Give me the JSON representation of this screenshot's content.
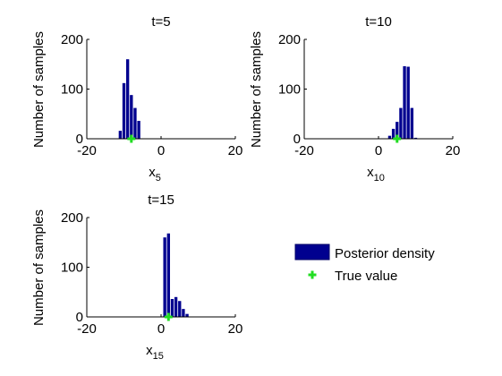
{
  "colors": {
    "bar_fill": "#00008f",
    "bar_edge": "#000066",
    "true_marker": "#22dd22",
    "axis": "#000000",
    "background": "#ffffff"
  },
  "legend": {
    "posterior_label": "Posterior density",
    "true_label": "True value"
  },
  "chart_data": [
    {
      "type": "bar",
      "title": "t=5",
      "xlabel_base": "x",
      "xlabel_sub": "5",
      "ylabel": "Number of samples",
      "xlim": [
        -20,
        20
      ],
      "ylim": [
        0,
        200
      ],
      "xticks": [
        "-20",
        "0",
        "20"
      ],
      "yticks": [
        "0",
        "100",
        "200"
      ],
      "bin_width": 1,
      "bin_centers": [
        -11,
        -10,
        -9,
        -8,
        -7,
        -6,
        -5
      ],
      "counts": [
        16,
        112,
        160,
        88,
        62,
        36,
        0
      ],
      "true_value": -8
    },
    {
      "type": "bar",
      "title": "t=10",
      "xlabel_base": "x",
      "xlabel_sub": "10",
      "ylabel": "Number of samples",
      "xlim": [
        -20,
        20
      ],
      "ylim": [
        0,
        200
      ],
      "xticks": [
        "-20",
        "0",
        "20"
      ],
      "yticks": [
        "0",
        "100",
        "200"
      ],
      "bin_width": 1,
      "bin_centers": [
        3,
        4,
        5,
        6,
        7,
        8,
        9,
        10
      ],
      "counts": [
        6,
        20,
        34,
        62,
        146,
        145,
        62,
        2
      ],
      "true_value": 5
    },
    {
      "type": "bar",
      "title": "t=15",
      "xlabel_base": "x",
      "xlabel_sub": "15",
      "ylabel": "Number of samples",
      "xlim": [
        -20,
        20
      ],
      "ylim": [
        0,
        200
      ],
      "xticks": [
        "-20",
        "0",
        "20"
      ],
      "yticks": [
        "0",
        "100",
        "200"
      ],
      "bin_width": 1,
      "bin_centers": [
        1,
        2,
        3,
        4,
        5,
        6,
        7
      ],
      "counts": [
        160,
        168,
        36,
        40,
        32,
        16,
        6
      ],
      "true_value": 2
    }
  ]
}
